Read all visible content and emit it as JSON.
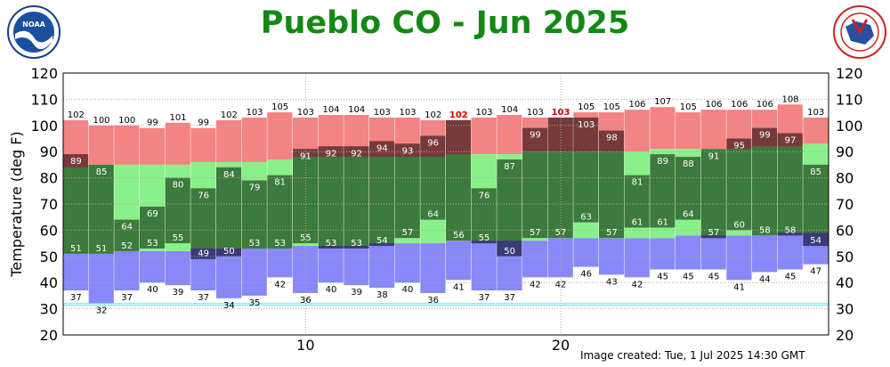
{
  "title": "Pueblo CO - Jun 2025",
  "footer": "Image created: Tue, 1 Jul 2025 14:30 GMT",
  "logos": {
    "left": "noaa-logo",
    "right": "national-weather-service-logo"
  },
  "colors": {
    "title": "#138913",
    "record_high": "#f48383",
    "record_low": "#8888f8",
    "normal_band": "#8af08a",
    "observed_range": "#3d7a3d",
    "above_normal": "#773a3a",
    "below_normal": "#3a3a77",
    "dotted_grid": "#aaaaaa",
    "cyan_line": "#5ee8f0",
    "highlight_label": "#dd0000"
  },
  "chart_data": {
    "type": "bar",
    "ylabel": "Temperature (deg F)",
    "ylim": [
      20,
      120
    ],
    "yticks": [
      20,
      30,
      40,
      50,
      60,
      70,
      80,
      90,
      100,
      110,
      120
    ],
    "xticks": [
      10,
      20
    ],
    "xlim": [
      0.5,
      30.5
    ],
    "days": [
      1,
      2,
      3,
      4,
      5,
      6,
      7,
      8,
      9,
      10,
      11,
      12,
      13,
      14,
      15,
      16,
      17,
      18,
      19,
      20,
      21,
      22,
      23,
      24,
      25,
      26,
      27,
      28,
      29,
      30
    ],
    "record_high": [
      102,
      100,
      100,
      99,
      101,
      99,
      102,
      103,
      105,
      103,
      104,
      104,
      103,
      103,
      102,
      102,
      103,
      104,
      103,
      103,
      105,
      105,
      106,
      107,
      105,
      106,
      106,
      106,
      108,
      103
    ],
    "record_high_new": [
      false,
      false,
      false,
      false,
      false,
      false,
      false,
      false,
      false,
      false,
      false,
      false,
      false,
      false,
      false,
      true,
      false,
      false,
      false,
      true,
      false,
      false,
      false,
      false,
      false,
      false,
      false,
      false,
      false,
      false
    ],
    "record_low": [
      37,
      32,
      37,
      40,
      39,
      37,
      34,
      35,
      42,
      36,
      40,
      39,
      38,
      40,
      36,
      41,
      37,
      37,
      42,
      42,
      46,
      43,
      42,
      45,
      45,
      45,
      41,
      44,
      45,
      47
    ],
    "normal_high": [
      84,
      85,
      85,
      85,
      85,
      86,
      86,
      86,
      87,
      88,
      88,
      88,
      88,
      88,
      88,
      89,
      89,
      89,
      90,
      90,
      90,
      90,
      90,
      91,
      91,
      91,
      91,
      92,
      92,
      93
    ],
    "normal_low": [
      51,
      51,
      52,
      52,
      52,
      53,
      53,
      53,
      53,
      54,
      54,
      54,
      55,
      55,
      55,
      56,
      56,
      56,
      56,
      57,
      57,
      57,
      57,
      57,
      58,
      58,
      58,
      58,
      59,
      59
    ],
    "observed_high": [
      89,
      85,
      64,
      69,
      80,
      76,
      84,
      79,
      81,
      91,
      92,
      92,
      94,
      93,
      96,
      102,
      76,
      87,
      99,
      103,
      103,
      98,
      81,
      89,
      88,
      91,
      95,
      99,
      97,
      85
    ],
    "observed_low": [
      51,
      51,
      52,
      53,
      55,
      49,
      50,
      53,
      53,
      55,
      53,
      53,
      54,
      57,
      64,
      56,
      55,
      50,
      57,
      57,
      63,
      57,
      61,
      61,
      64,
      57,
      60,
      58,
      58,
      54
    ],
    "horizontal_line": 32,
    "legend": "none"
  }
}
